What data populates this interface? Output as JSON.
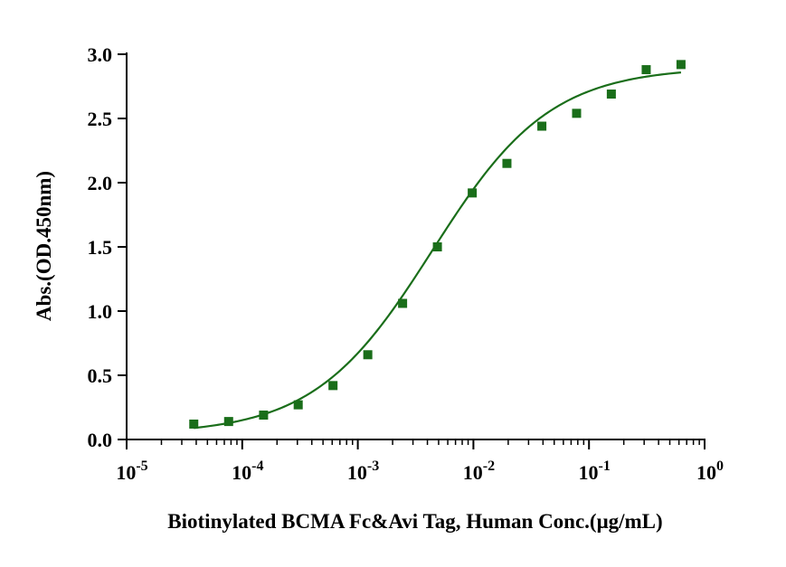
{
  "chart_data": {
    "type": "scatter",
    "title": "",
    "xlabel": "Biotinylated BCMA Fc&Avi Tag, Human  Conc.(μg/mL)",
    "ylabel": "Abs.(OD.450nm)",
    "x_scale": "log10",
    "xlim": [
      1e-05,
      1
    ],
    "ylim": [
      0,
      3
    ],
    "grid": false,
    "legend": "none",
    "x_ticks": [
      {
        "value": 1e-05,
        "base": "10",
        "exp": "-5"
      },
      {
        "value": 0.0001,
        "base": "10",
        "exp": "-4"
      },
      {
        "value": 0.001,
        "base": "10",
        "exp": "-3"
      },
      {
        "value": 0.01,
        "base": "10",
        "exp": "-2"
      },
      {
        "value": 0.1,
        "base": "10",
        "exp": "-1"
      },
      {
        "value": 1,
        "base": "10",
        "exp": "0"
      }
    ],
    "y_ticks": [
      {
        "value": 0,
        "label": "0.0"
      },
      {
        "value": 0.5,
        "label": "0.5"
      },
      {
        "value": 1,
        "label": "1.0"
      },
      {
        "value": 1.5,
        "label": "1.5"
      },
      {
        "value": 2,
        "label": "2.0"
      },
      {
        "value": 2.5,
        "label": "2.5"
      },
      {
        "value": 3,
        "label": "3.0"
      }
    ],
    "series": [
      {
        "color": "#1a6e1a",
        "marker": "square",
        "x": [
          3.81e-05,
          7.63e-05,
          0.000153,
          0.000305,
          0.00061,
          0.00122,
          0.00244,
          0.00488,
          0.00977,
          0.0195,
          0.0391,
          0.0781,
          0.156,
          0.3125,
          0.625
        ],
        "y": [
          0.12,
          0.14,
          0.19,
          0.27,
          0.42,
          0.66,
          1.06,
          1.5,
          1.92,
          2.15,
          2.44,
          2.54,
          2.69,
          2.88,
          2.92
        ]
      }
    ],
    "fit_curve": {
      "model": "4PL",
      "bottom": 0.04,
      "top": 2.9,
      "ec50": 0.0044,
      "hill": 0.85,
      "x_range": [
        3.81e-05,
        0.625
      ],
      "color": "#1a6e1a"
    }
  }
}
